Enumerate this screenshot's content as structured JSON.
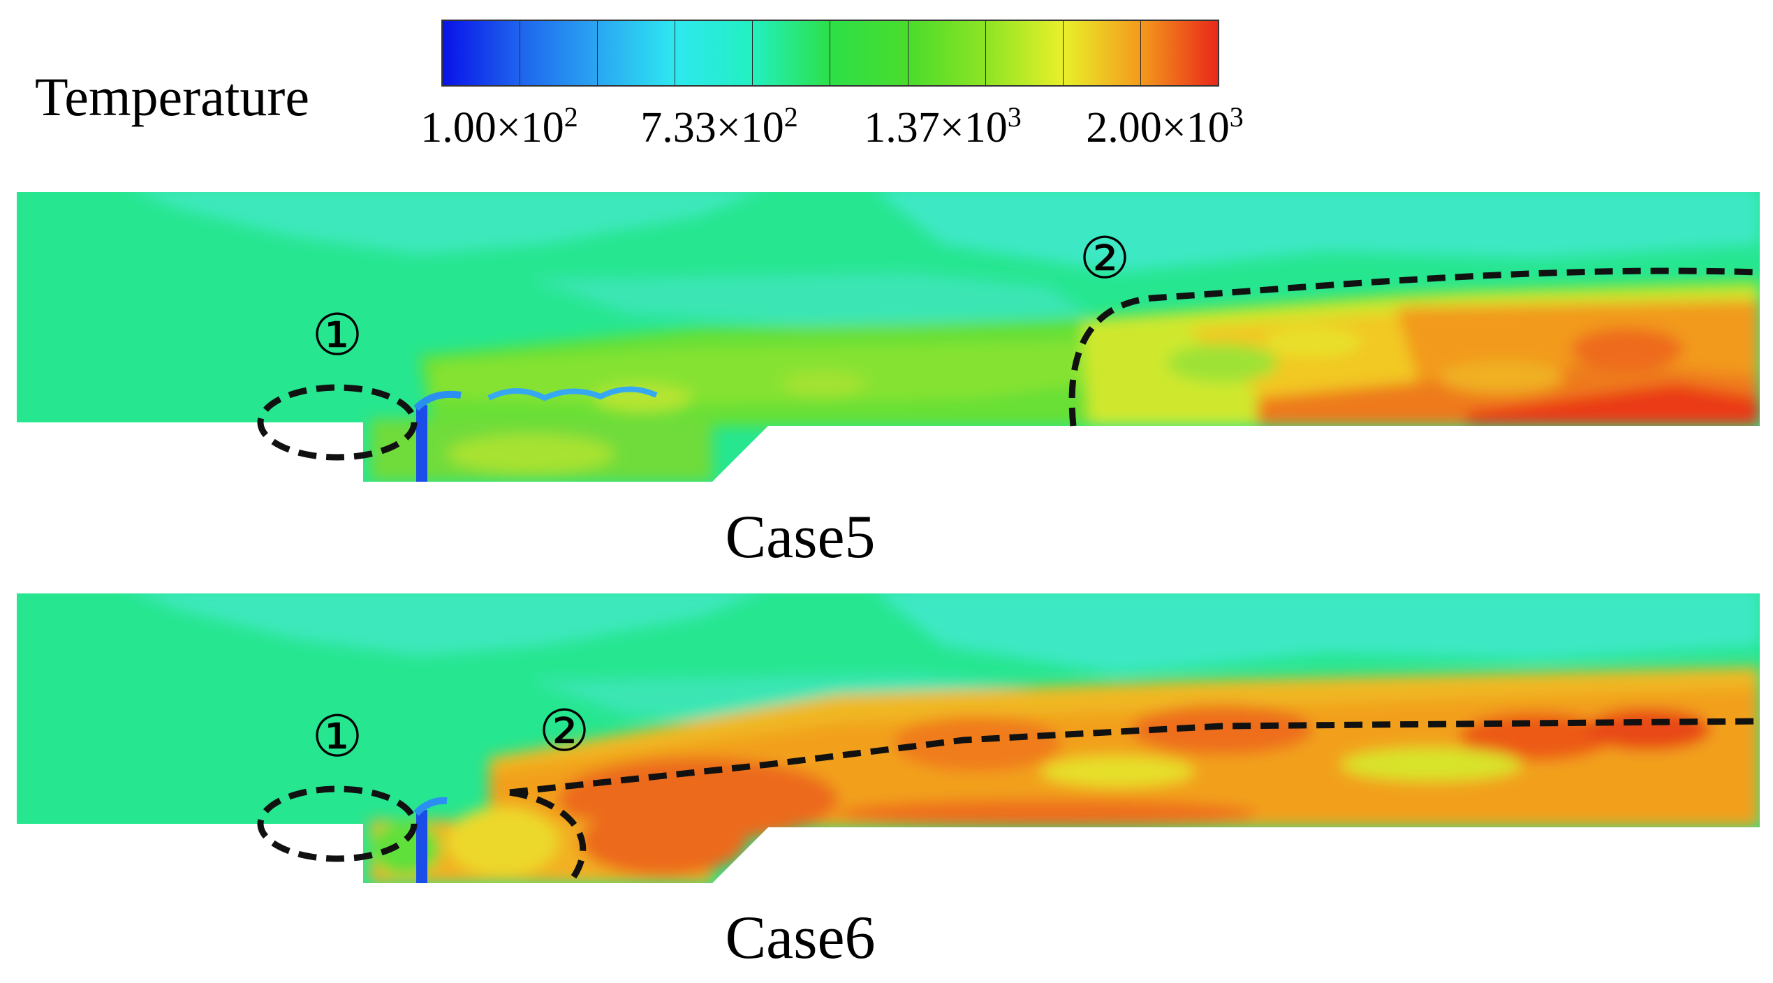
{
  "legend": {
    "title": "Temperature",
    "ticks": [
      {
        "mantissa": "1.00×10",
        "exponent": "2"
      },
      {
        "mantissa": "7.33×10",
        "exponent": "2"
      },
      {
        "mantissa": "1.37×10",
        "exponent": "3"
      },
      {
        "mantissa": "2.00×10",
        "exponent": "3"
      }
    ],
    "colors": [
      "#0a12e8",
      "#1e64ee",
      "#2aa6f2",
      "#2ee8f0",
      "#22f0c0",
      "#24ec84",
      "#2ce048",
      "#4adc2c",
      "#8ee424",
      "#e8f02a",
      "#f49a1c",
      "#e8281a"
    ]
  },
  "panels": [
    {
      "label": "Case5",
      "marker_1": "①",
      "marker_2": "②"
    },
    {
      "label": "Case6",
      "marker_1": "①",
      "marker_2": "②"
    }
  ]
}
